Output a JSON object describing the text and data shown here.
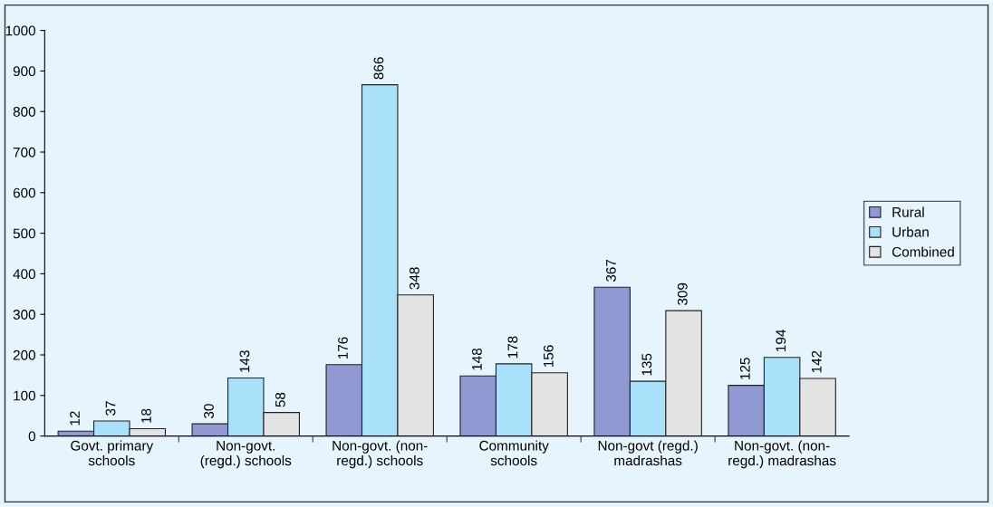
{
  "chart_data": {
    "type": "bar",
    "categories": [
      "Govt. primary\nschools",
      "Non-govt.\n(regd.) schools",
      "Non-govt. (non-\nregd.) schools",
      "Community\nschools",
      "Non-govt (regd.)\nmadrashas",
      "Non-govt. (non-\nregd.) madrashas"
    ],
    "series": [
      {
        "name": "Rural",
        "color": "#9199d3",
        "values": [
          12,
          30,
          176,
          148,
          367,
          125
        ]
      },
      {
        "name": "Urban",
        "color": "#a9e1fa",
        "values": [
          37,
          143,
          866,
          178,
          135,
          194
        ]
      },
      {
        "name": "Combined",
        "color": "#e3e3e3",
        "values": [
          18,
          58,
          348,
          156,
          309,
          142
        ]
      }
    ],
    "ylim": [
      0,
      1000
    ],
    "yticks": [
      0,
      100,
      200,
      300,
      400,
      500,
      600,
      700,
      800,
      900,
      1000
    ],
    "data_labels": true,
    "legend": "right",
    "grid": false
  }
}
